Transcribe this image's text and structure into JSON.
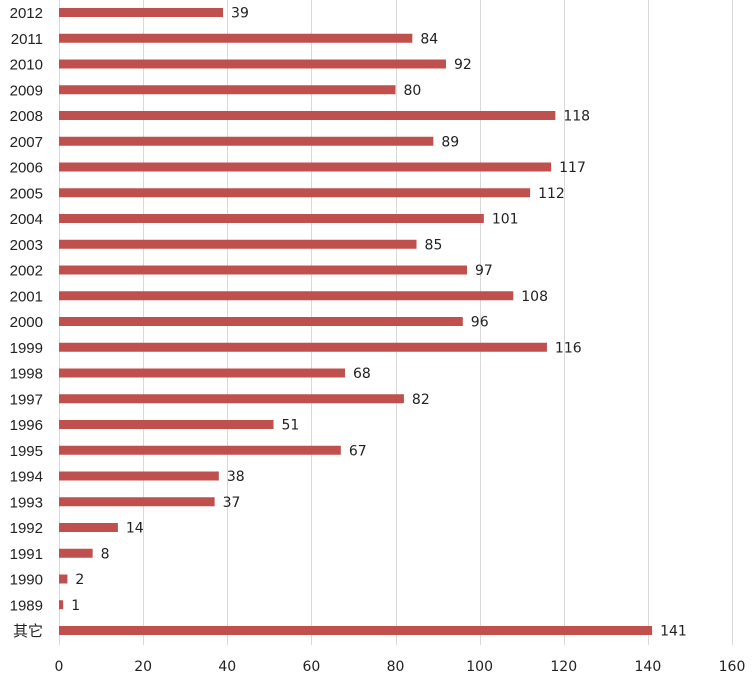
{
  "chart_data": {
    "type": "bar",
    "orientation": "horizontal",
    "categories": [
      "2012",
      "2011",
      "2010",
      "2009",
      "2008",
      "2007",
      "2006",
      "2005",
      "2004",
      "2003",
      "2002",
      "2001",
      "2000",
      "1999",
      "1998",
      "1997",
      "1996",
      "1995",
      "1994",
      "1993",
      "1992",
      "1991",
      "1990",
      "1989",
      "其它"
    ],
    "values": [
      39,
      84,
      92,
      80,
      118,
      89,
      117,
      112,
      101,
      85,
      97,
      108,
      96,
      116,
      68,
      82,
      51,
      67,
      38,
      37,
      14,
      8,
      2,
      1,
      141
    ],
    "xlim": [
      0,
      160
    ],
    "xticks": [
      0,
      20,
      40,
      60,
      80,
      100,
      120,
      140,
      160
    ],
    "grid": true,
    "bar_color": "#c0504d",
    "title": "",
    "xlabel": "",
    "ylabel": ""
  }
}
